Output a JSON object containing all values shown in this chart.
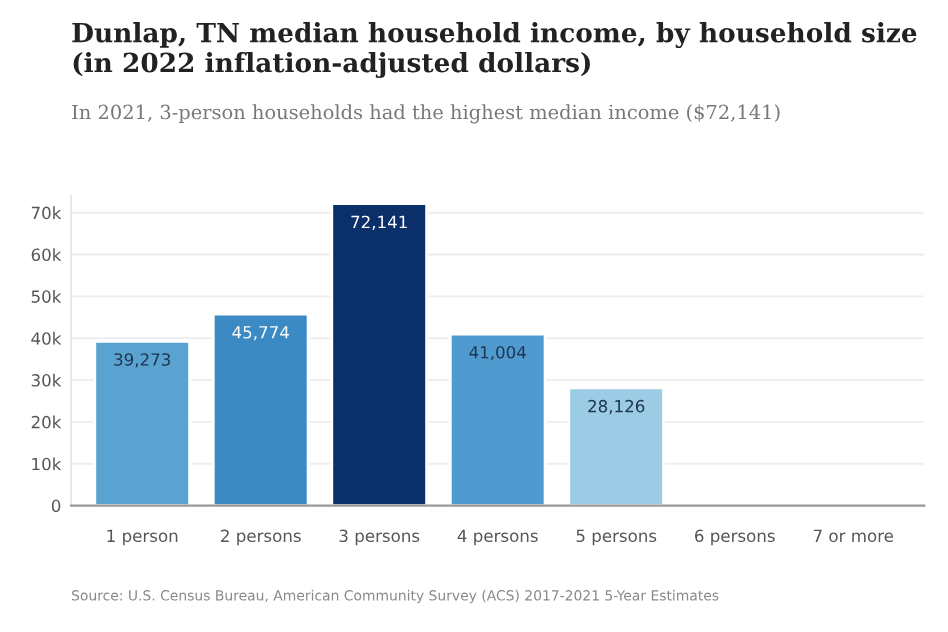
{
  "chart_data": {
    "type": "bar",
    "title": "Dunlap, TN median household income, by household size (in 2022 inflation-adjusted dollars)",
    "subtitle": "In 2021, 3-person households had the highest median income ($72,141)",
    "categories": [
      "1 person",
      "2 persons",
      "3 persons",
      "4 persons",
      "5 persons",
      "6 persons",
      "7 or more"
    ],
    "values": [
      39273,
      45774,
      72141,
      41004,
      28126,
      null,
      null
    ],
    "value_labels": [
      "39,273",
      "45,774",
      "72,141",
      "41,004",
      "28,126",
      null,
      null
    ],
    "colors": [
      "#5aa2d0",
      "#3b8ac3",
      "#0b2f68",
      "#4f9bd0",
      "#9ccbe6",
      "#9ccbe6",
      "#9ccbe6"
    ],
    "ylim": [
      0,
      74000
    ],
    "yticks": [
      {
        "value": 0,
        "label": "0"
      },
      {
        "value": 10000,
        "label": "10k"
      },
      {
        "value": 20000,
        "label": "20k"
      },
      {
        "value": 30000,
        "label": "30k"
      },
      {
        "value": 40000,
        "label": "40k"
      },
      {
        "value": 50000,
        "label": "50k"
      },
      {
        "value": 60000,
        "label": "60k"
      },
      {
        "value": 70000,
        "label": "70k"
      }
    ],
    "grid": "y",
    "legend": false,
    "annotations": [
      "Source: U.S. Census Bureau, American Community Survey (ACS) 2017-2021 5-Year Estimates"
    ]
  }
}
